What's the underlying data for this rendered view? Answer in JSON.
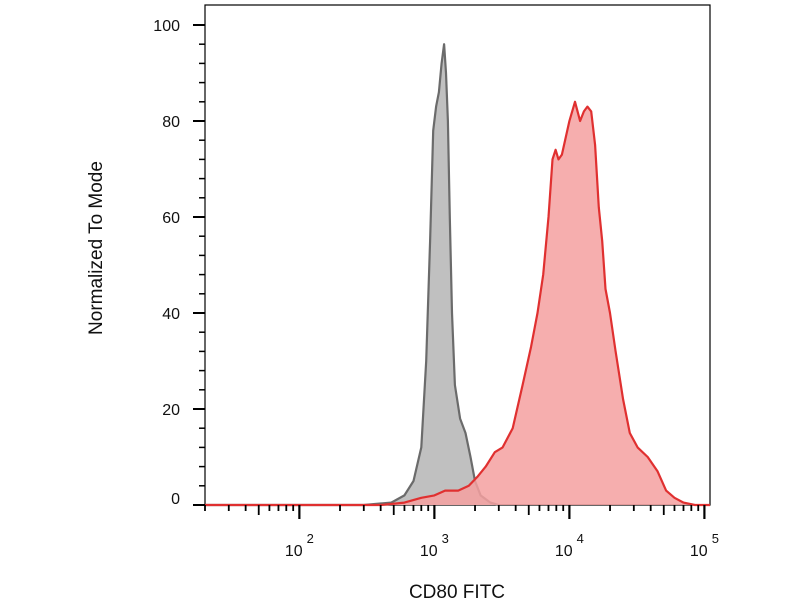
{
  "chart_data": {
    "type": "area",
    "xlabel": "CD80 FITC",
    "ylabel": "Normalized To Mode",
    "xscale": "log",
    "xlim": [
      20,
      110000
    ],
    "ylim": [
      0,
      100
    ],
    "grid": false,
    "legend": "none",
    "y_ticks": [
      0,
      20,
      40,
      60,
      80,
      100
    ],
    "x_ticks": [
      {
        "value": 100,
        "base": "10",
        "exp": "2"
      },
      {
        "value": 1000,
        "base": "10",
        "exp": "3"
      },
      {
        "value": 10000,
        "base": "10",
        "exp": "4"
      },
      {
        "value": 100000,
        "base": "10",
        "exp": "5"
      }
    ],
    "series": [
      {
        "color": "#6b6b6b",
        "fill": "#bdbdbd",
        "x": [
          20,
          300,
          480,
          600,
          700,
          800,
          870,
          930,
          980,
          1030,
          1080,
          1130,
          1180,
          1220,
          1260,
          1300,
          1350,
          1420,
          1550,
          1700,
          1850,
          2000,
          2200,
          2600,
          3000
        ],
        "y": [
          0,
          0,
          0.5,
          2,
          5,
          12,
          30,
          55,
          78,
          83,
          86,
          92,
          96,
          90,
          80,
          60,
          40,
          25,
          18,
          15,
          10,
          5,
          2,
          0.5,
          0
        ]
      },
      {
        "color": "#e03030",
        "fill": "#f5a0a0",
        "x": [
          20,
          400,
          600,
          800,
          1000,
          1200,
          1500,
          1800,
          2100,
          2400,
          2800,
          3200,
          3800,
          4500,
          5200,
          5800,
          6400,
          7000,
          7500,
          7900,
          8300,
          8800,
          9300,
          10000,
          11000,
          12000,
          12800,
          13600,
          14500,
          15500,
          16500,
          17500,
          18500,
          20000,
          22000,
          25000,
          28000,
          32000,
          38000,
          45000,
          52000,
          60000,
          70000,
          85000,
          100000,
          110000
        ],
        "y": [
          0,
          0,
          0.5,
          1.5,
          2,
          3,
          3,
          4,
          6,
          8,
          11,
          12,
          16,
          25,
          33,
          40,
          48,
          60,
          72,
          74,
          72,
          73,
          76,
          80,
          84,
          80,
          82,
          83,
          82,
          75,
          62,
          55,
          45,
          40,
          32,
          22,
          15,
          12,
          10,
          7,
          3,
          1.5,
          0.5,
          0,
          0,
          0
        ]
      }
    ]
  }
}
